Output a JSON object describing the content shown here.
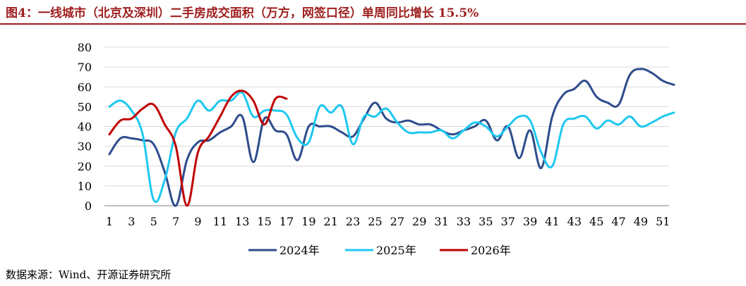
{
  "title": "图4：一线城市（北京及深圳）二手房成交面积（万方，网签口径）单周同比增长 15.5%",
  "source": "数据来源：Wind、开源证券研究所",
  "chart_data": {
    "type": "line",
    "title": "图4：一线城市（北京及深圳）二手房成交面积（万方，网签口径）单周同比增长 15.5%",
    "xlabel": "",
    "ylabel": "",
    "ylim": [
      0,
      80
    ],
    "yticks": [
      0,
      10,
      20,
      30,
      40,
      50,
      60,
      70,
      80
    ],
    "xticks": [
      1,
      3,
      5,
      7,
      9,
      11,
      13,
      15,
      17,
      19,
      21,
      23,
      25,
      27,
      29,
      31,
      33,
      35,
      37,
      39,
      41,
      43,
      45,
      47,
      49,
      51
    ],
    "grid": true,
    "legend_position": "bottom",
    "series": [
      {
        "name": "2024年",
        "color": "#2e4c8c",
        "x": [
          1,
          2,
          3,
          4,
          5,
          6,
          7,
          8,
          9,
          10,
          11,
          12,
          13,
          14,
          15,
          16,
          17,
          18,
          19,
          20,
          21,
          22,
          23,
          24,
          25,
          26,
          27,
          28,
          29,
          30,
          31,
          32,
          33,
          34,
          35,
          36,
          37,
          38,
          39,
          40,
          41,
          42,
          43,
          44,
          45,
          46,
          47,
          48,
          49,
          50,
          51,
          52
        ],
        "values": [
          26,
          34,
          34,
          33,
          31,
          17,
          0,
          23,
          32,
          33,
          37,
          40,
          45,
          22,
          44,
          38,
          36,
          23,
          40,
          40,
          40,
          37,
          35,
          44,
          52,
          44,
          42,
          43,
          41,
          41,
          38,
          36,
          38,
          40,
          43,
          33,
          40,
          24,
          38,
          19,
          45,
          56,
          59,
          63,
          55,
          52,
          51,
          66,
          69,
          67,
          63,
          61
        ]
      },
      {
        "name": "2025年",
        "color": "#1fc8f0",
        "x": [
          1,
          2,
          3,
          4,
          5,
          6,
          7,
          8,
          9,
          10,
          11,
          12,
          13,
          14,
          15,
          16,
          17,
          18,
          19,
          20,
          21,
          22,
          23,
          24,
          25,
          26,
          27,
          28,
          29,
          30,
          31,
          32,
          33,
          34,
          35,
          36,
          37,
          38,
          39,
          40,
          41,
          42,
          43,
          44,
          45,
          46,
          47,
          48,
          49,
          50,
          51,
          52
        ],
        "values": [
          50,
          53,
          48,
          36,
          3,
          13,
          37,
          44,
          53,
          48,
          53,
          53,
          57,
          45,
          48,
          48,
          46,
          34,
          32,
          50,
          47,
          50,
          31,
          45,
          45,
          49,
          42,
          37,
          37,
          37,
          38,
          34,
          38,
          42,
          40,
          35,
          40,
          45,
          43,
          27,
          20,
          41,
          44,
          45,
          39,
          43,
          41,
          45,
          40,
          42,
          45,
          47
        ]
      },
      {
        "name": "2026年",
        "color": "#c00000",
        "x": [
          1,
          2,
          3,
          4,
          5,
          6,
          7,
          8,
          9,
          10,
          11,
          12,
          13,
          14,
          15,
          16,
          17
        ],
        "values": [
          36,
          43,
          44,
          49,
          51,
          41,
          30,
          0,
          27,
          35,
          45,
          55,
          58,
          53,
          41,
          54,
          54
        ]
      }
    ]
  }
}
